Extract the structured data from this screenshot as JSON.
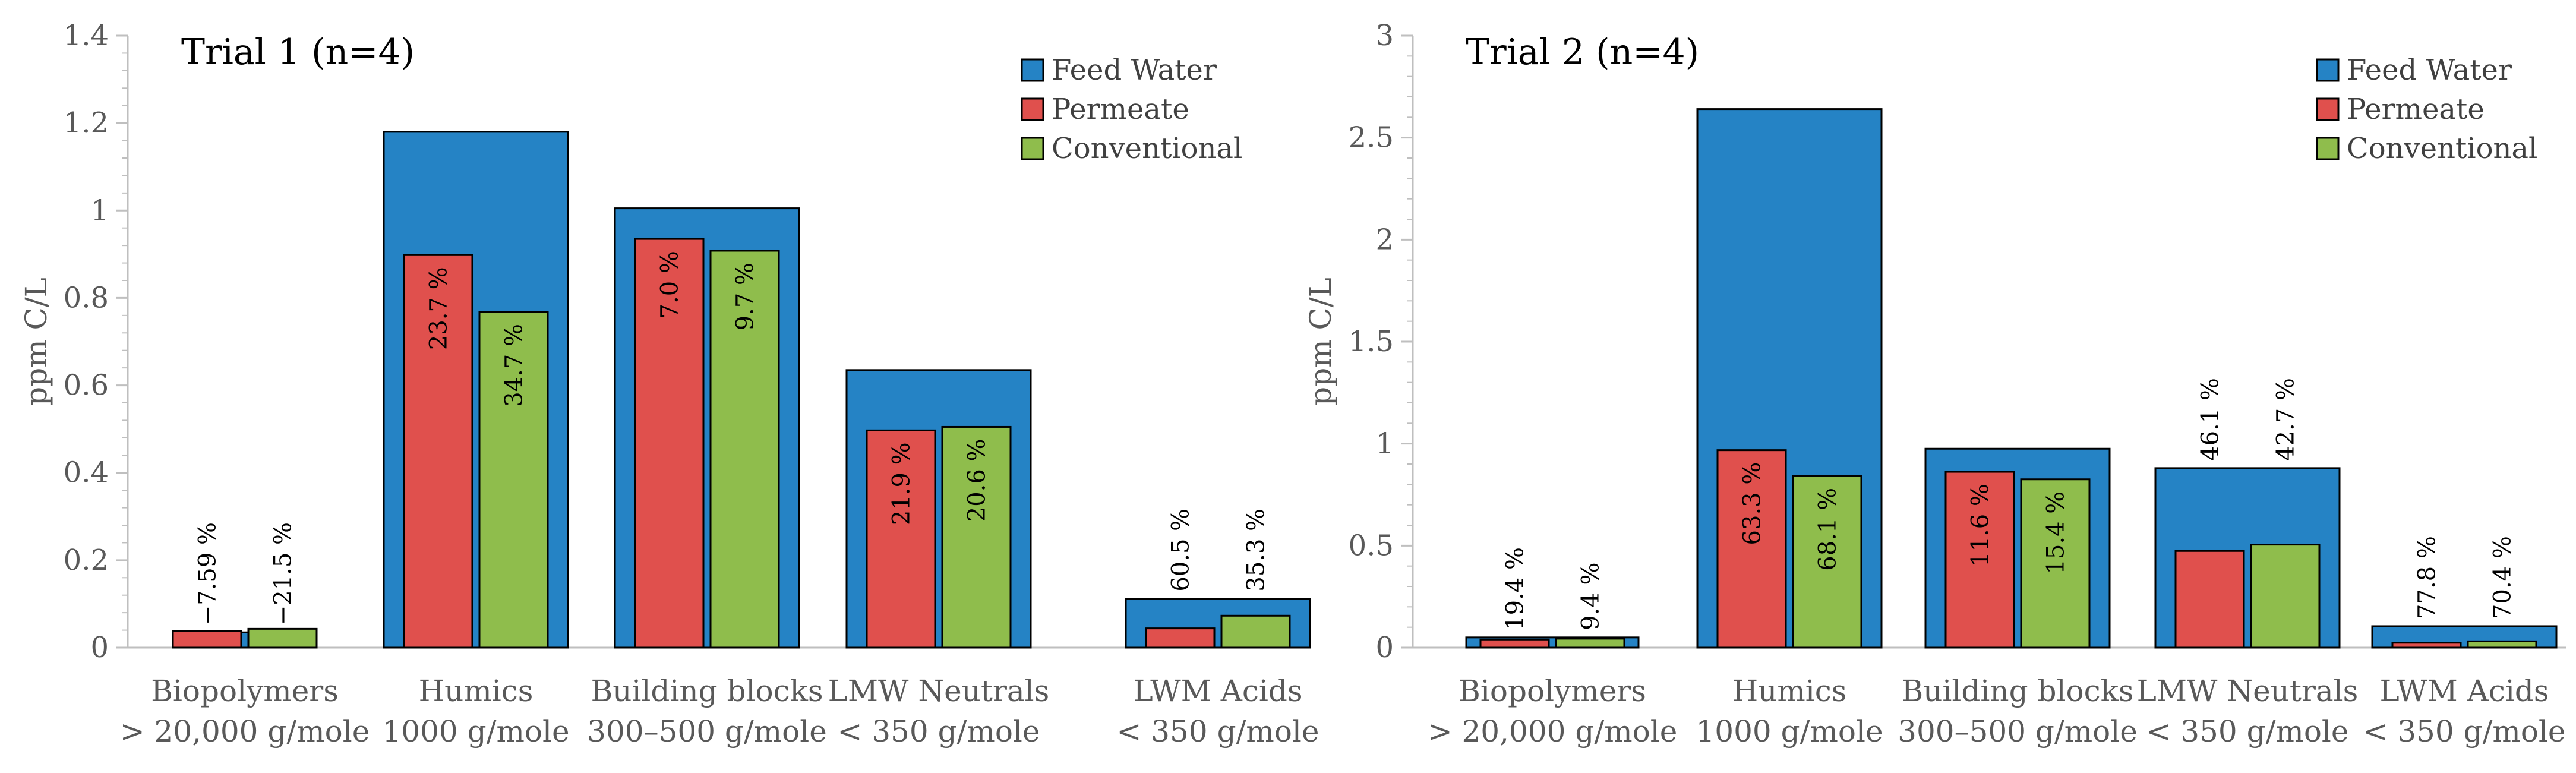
{
  "colors": {
    "feed": "#2583c5",
    "permeate": "#e0504d",
    "conventional": "#8fbd4c",
    "axis": "#bfbfbf",
    "text": "#595959"
  },
  "chart_data": [
    {
      "type": "bar",
      "title": "Trial 1 (n=4)",
      "xlabel": "",
      "ylabel": "ppm C/L",
      "ylim": [
        0,
        1.4
      ],
      "yticks": [
        0,
        0.2,
        0.4,
        0.6,
        0.8,
        1,
        1.2,
        1.4
      ],
      "ytick_labels": [
        "0",
        "0.2",
        "0.4",
        "0.6",
        "0.8",
        "1",
        "1.2",
        "1.4"
      ],
      "legend_position": "top-right",
      "categories": [
        {
          "name": "Biopolymers",
          "range": "> 20,000 g/mole"
        },
        {
          "name": "Humics",
          "range": "1000 g/mole"
        },
        {
          "name": "Building blocks",
          "range": "300–500 g/mole"
        },
        {
          "name": "LMW Neutrals",
          "range": "< 350 g/mole"
        },
        {
          "name": "LWM Acids",
          "range": "< 350 g/mole"
        }
      ],
      "series": [
        {
          "name": "Feed Water",
          "color": "#2583c5",
          "values": [
            0.035,
            1.18,
            1.005,
            0.635,
            0.112
          ]
        },
        {
          "name": "Permeate",
          "color": "#e0504d",
          "values": [
            0.038,
            0.898,
            0.935,
            0.497,
            0.044
          ],
          "labels": [
            "−7.59 %",
            "23.7 %",
            "7.0 %",
            "21.9 %",
            "60.5 %"
          ]
        },
        {
          "name": "Conventional",
          "color": "#8fbd4c",
          "values": [
            0.043,
            0.768,
            0.908,
            0.505,
            0.073
          ],
          "labels": [
            "−21.5 %",
            "34.7 %",
            "9.7 %",
            "20.6 %",
            "35.3 %"
          ]
        }
      ]
    },
    {
      "type": "bar",
      "title": "Trial 2 (n=4)",
      "xlabel": "",
      "ylabel": "ppm C/L",
      "ylim": [
        0,
        3
      ],
      "yticks": [
        0,
        0.5,
        1,
        1.5,
        2,
        2.5,
        3
      ],
      "ytick_labels": [
        "0",
        "0.5",
        "1",
        "1.5",
        "2",
        "2.5",
        "3"
      ],
      "legend_position": "top-right",
      "categories": [
        {
          "name": "Biopolymers",
          "range": "> 20,000 g/mole"
        },
        {
          "name": "Humics",
          "range": "1000 g/mole"
        },
        {
          "name": "Building blocks",
          "range": "300–500 g/mole"
        },
        {
          "name": "LMW Neutrals",
          "range": "< 350 g/mole"
        },
        {
          "name": "LWM Acids",
          "range": "< 350 g/mole"
        }
      ],
      "series": [
        {
          "name": "Feed Water",
          "color": "#2583c5",
          "values": [
            0.05,
            2.64,
            0.975,
            0.88,
            0.105
          ]
        },
        {
          "name": "Permeate",
          "color": "#e0504d",
          "values": [
            0.04,
            0.968,
            0.862,
            0.474,
            0.024
          ],
          "labels": [
            "19.4 %",
            "63.3 %",
            "11.6 %",
            "46.1 %",
            "77.8 %"
          ]
        },
        {
          "name": "Conventional",
          "color": "#8fbd4c",
          "values": [
            0.044,
            0.842,
            0.825,
            0.505,
            0.031
          ],
          "labels": [
            "9.4 %",
            "68.1 %",
            "15.4 %",
            "42.7 %",
            "70.4 %"
          ]
        }
      ]
    }
  ]
}
